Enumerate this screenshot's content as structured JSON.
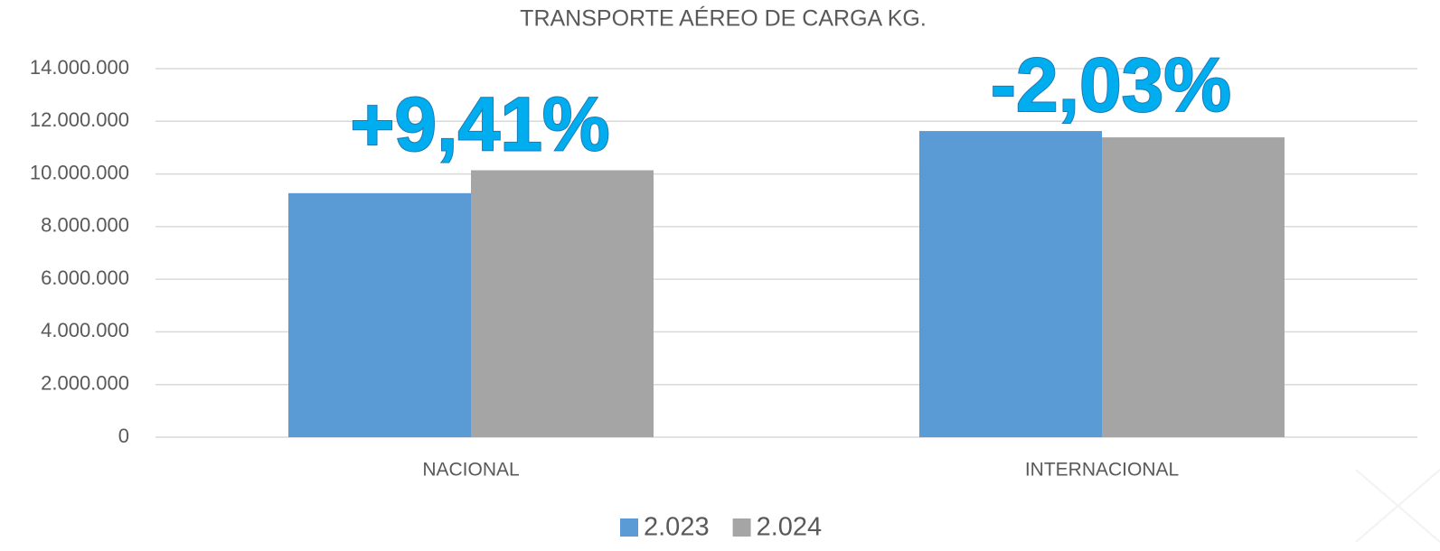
{
  "chart_data": {
    "type": "bar",
    "title": "TRANSPORTE AÉREO DE CARGA KG.",
    "categories": [
      "NACIONAL",
      "INTERNACIONAL"
    ],
    "series": [
      {
        "name": "2.023",
        "color": "#5b9bd5",
        "values": [
          9270000,
          11630000
        ]
      },
      {
        "name": "2.024",
        "color": "#a5a5a5",
        "values": [
          10140000,
          11390000
        ]
      }
    ],
    "annotations": [
      "+9,41%",
      "-2,03%"
    ],
    "ylim": [
      0,
      14000000
    ],
    "yticks": [
      0,
      {
        "value": 2000000,
        "label": "2.000.000"
      },
      {
        "value": 4000000,
        "label": "4.000.000"
      },
      {
        "value": 6000000,
        "label": "6.000.000"
      },
      {
        "value": 8000000,
        "label": "8.000.000"
      },
      {
        "value": 10000000,
        "label": "10.000.000"
      },
      {
        "value": 12000000,
        "label": "12.000.000"
      },
      {
        "value": 14000000,
        "label": "14.000.000"
      }
    ],
    "grid": true,
    "legend": "bottom"
  }
}
